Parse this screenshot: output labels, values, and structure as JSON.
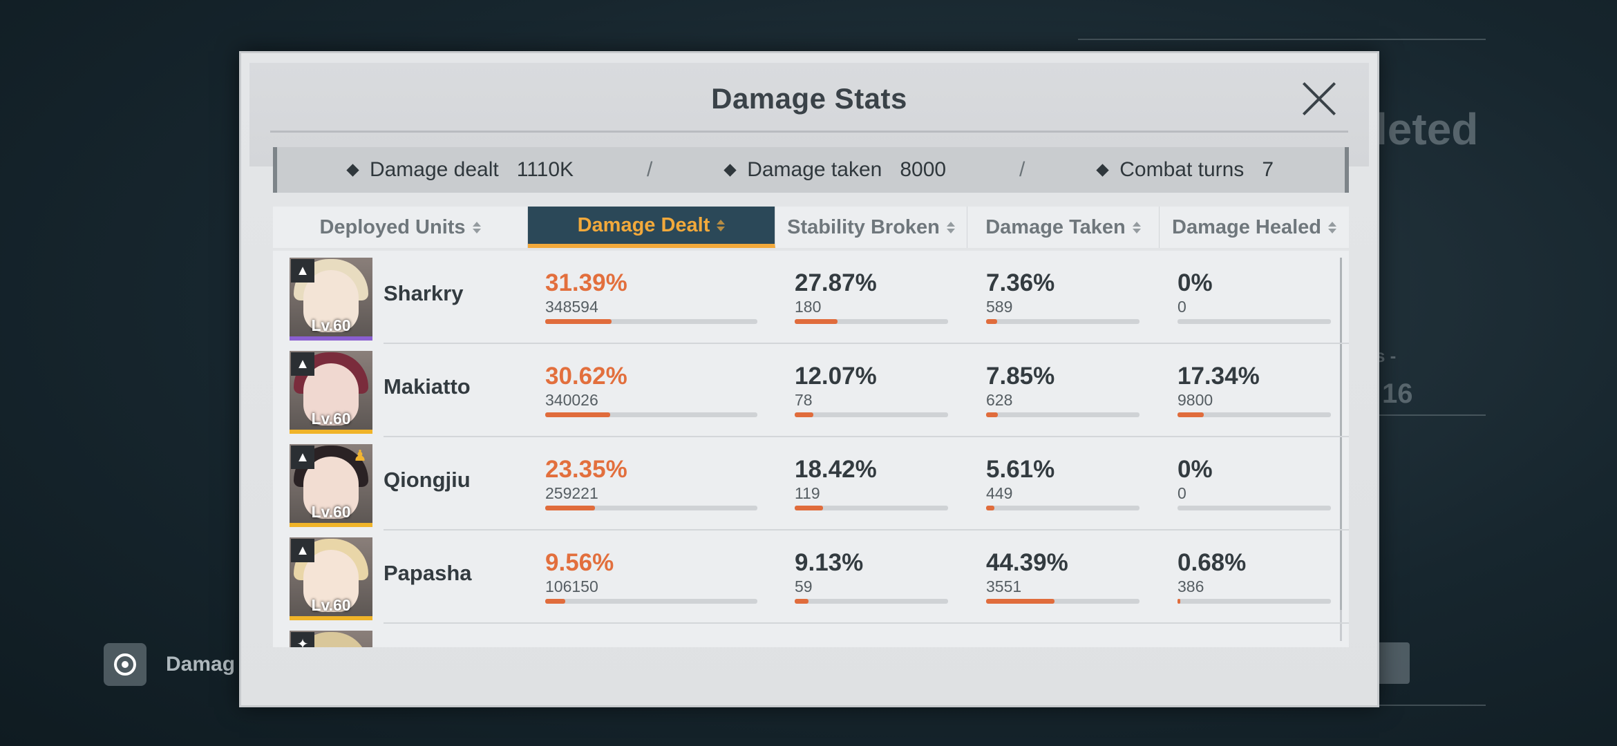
{
  "background": {
    "left_button_label": "Damag",
    "right_text_1": "leted",
    "right_text_2": "16",
    "right_text_3": "s -"
  },
  "dialog": {
    "title": "Damage Stats"
  },
  "summary": {
    "damage_dealt_label": "Damage dealt",
    "damage_dealt_value": "1110K",
    "damage_taken_label": "Damage taken",
    "damage_taken_value": "8000",
    "combat_turns_label": "Combat turns",
    "combat_turns_value": "7",
    "separator": "/"
  },
  "tabs": [
    {
      "label": "Deployed Units",
      "active": false
    },
    {
      "label": "Damage Dealt",
      "active": true
    },
    {
      "label": "Stability Broken",
      "active": false
    },
    {
      "label": "Damage Taken",
      "active": false
    },
    {
      "label": "Damage Healed",
      "active": false
    }
  ],
  "colors": {
    "accent_orange": "#e26f3d",
    "active_tab_bg": "#2b4858",
    "active_tab_text": "#f2a93b",
    "rarity_purple": "#8a5fd0",
    "rarity_gold": "#f0b429"
  },
  "units": [
    {
      "name": "Sharkry",
      "level": "Lv.60",
      "rarity": "purple",
      "class_icon": "flame-class-icon",
      "hair": "#e8dcc0",
      "face": "#f3e4d6",
      "damage_dealt": {
        "pct": "31.39%",
        "value": "348594",
        "fraction": 0.3139
      },
      "stability_broken": {
        "pct": "27.87%",
        "value": "180",
        "fraction": 0.2787
      },
      "damage_taken": {
        "pct": "7.36%",
        "value": "589",
        "fraction": 0.0736
      },
      "damage_healed": {
        "pct": "0%",
        "value": "0",
        "fraction": 0
      }
    },
    {
      "name": "Makiatto",
      "level": "Lv.60",
      "rarity": "gold",
      "class_icon": "flame-class-icon",
      "hair": "#7a2c3c",
      "face": "#f0d8d0",
      "damage_dealt": {
        "pct": "30.62%",
        "value": "340026",
        "fraction": 0.3062
      },
      "stability_broken": {
        "pct": "12.07%",
        "value": "78",
        "fraction": 0.1207
      },
      "damage_taken": {
        "pct": "7.85%",
        "value": "628",
        "fraction": 0.0785
      },
      "damage_healed": {
        "pct": "17.34%",
        "value": "9800",
        "fraction": 0.1734
      }
    },
    {
      "name": "Qiongjiu",
      "level": "Lv.60",
      "rarity": "gold",
      "class_icon": "flame-class-icon",
      "buddy_icon": true,
      "hair": "#2a2224",
      "face": "#f2ddd2",
      "damage_dealt": {
        "pct": "23.35%",
        "value": "259221",
        "fraction": 0.2335
      },
      "stability_broken": {
        "pct": "18.42%",
        "value": "119",
        "fraction": 0.1842
      },
      "damage_taken": {
        "pct": "5.61%",
        "value": "449",
        "fraction": 0.0561
      },
      "damage_healed": {
        "pct": "0%",
        "value": "0",
        "fraction": 0
      }
    },
    {
      "name": "Papasha",
      "level": "Lv.60",
      "rarity": "gold",
      "class_icon": "flame-class-icon",
      "hair": "#e9d6a8",
      "face": "#f5e4d6",
      "damage_dealt": {
        "pct": "9.56%",
        "value": "106150",
        "fraction": 0.0956
      },
      "stability_broken": {
        "pct": "9.13%",
        "value": "59",
        "fraction": 0.0913
      },
      "damage_taken": {
        "pct": "44.39%",
        "value": "3551",
        "fraction": 0.4439
      },
      "damage_healed": {
        "pct": "0.68%",
        "value": "386",
        "fraction": 0.0068
      }
    }
  ]
}
